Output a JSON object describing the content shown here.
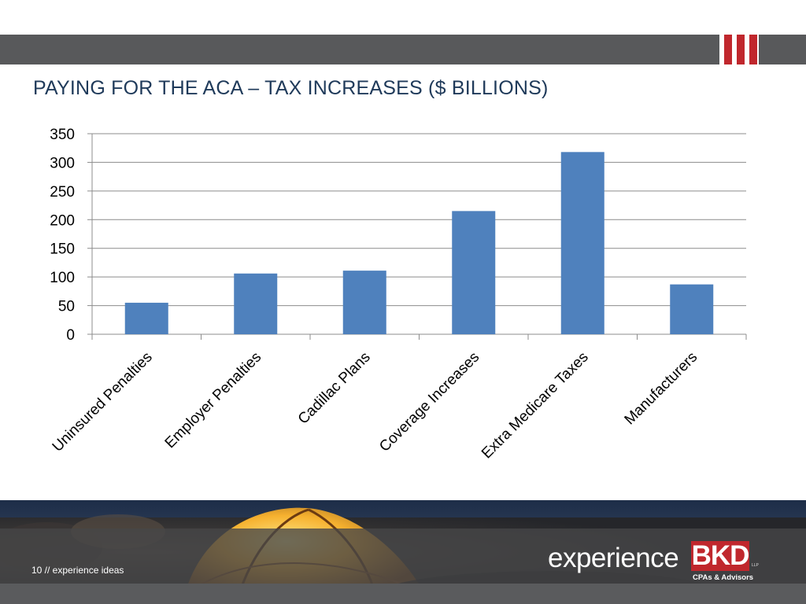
{
  "slide": {
    "title": "PAYING FOR THE ACA – TAX INCREASES ($ BILLIONS)",
    "page_caption": "10 // experience ideas"
  },
  "logo": {
    "word": "experience",
    "mark": "BKD",
    "suffix": "LLP",
    "tagline": "CPAs & Advisors"
  },
  "colors": {
    "band": "#58595b",
    "accent_red": "#c0272d",
    "title": "#1f3a5a",
    "bar": "#4f81bd",
    "gridline": "#8c8c8c"
  },
  "chart_data": {
    "type": "bar",
    "categories": [
      "Uninsured Penalties",
      "Employer Penalties",
      "Cadillac Plans",
      "Coverage Increases",
      "Extra Medicare Taxes",
      "Manufacturers"
    ],
    "values": [
      55,
      106,
      111,
      215,
      318,
      87
    ],
    "ylim": [
      0,
      350
    ],
    "yticks": [
      0,
      50,
      100,
      150,
      200,
      250,
      300,
      350
    ],
    "grid": true,
    "legend": "none"
  }
}
